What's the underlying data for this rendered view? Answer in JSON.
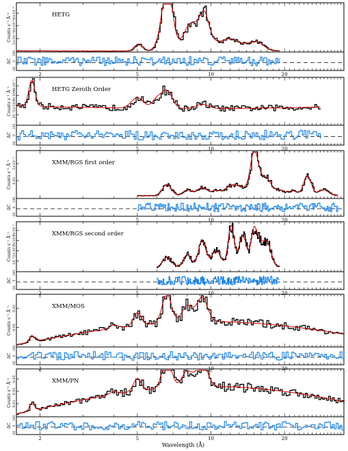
{
  "figure": {
    "xlabel": "Wavelength (Å)"
  },
  "chart_data": [
    {
      "type": "line",
      "title": "HETG",
      "ylabel": "Counts s⁻¹ Å⁻¹",
      "ytick_labels": [
        "2×10⁻⁴",
        "4×10⁻⁴",
        "6×10⁻⁴"
      ],
      "resid_label": "ΔC",
      "resid_ticks": [
        "-20",
        "0",
        "100"
      ],
      "xticks": [
        2,
        5,
        10,
        20
      ],
      "x_range": [
        1.6,
        35
      ],
      "x_scale": "log",
      "data_x_range": [
        1.6,
        19
      ],
      "ylim": [
        0,
        0.0007
      ],
      "series": [
        {
          "name": "data",
          "color": "#000000"
        },
        {
          "name": "model",
          "color": "#d40000"
        },
        {
          "name": "residual",
          "color": "#1f87e8"
        }
      ],
      "features": [
        [
          5.05,
          0.00011,
          0.05
        ],
        [
          6.6,
          0.00067,
          0.08
        ],
        [
          6.65,
          0.00045,
          0.05
        ],
        [
          8.0,
          0.0002,
          0.08
        ],
        [
          8.4,
          0.00022,
          0.08
        ],
        [
          9.2,
          0.0003,
          0.08
        ],
        [
          9.4,
          0.00026,
          0.05
        ],
        [
          10.0,
          0.00012,
          0.06
        ],
        [
          11.0,
          0.0001,
          0.08
        ],
        [
          12.1,
          0.00015,
          0.08
        ],
        [
          13.5,
          8e-05,
          0.08
        ],
        [
          15.0,
          0.0001,
          0.08
        ],
        [
          16.0,
          6e-05,
          0.08
        ]
      ],
      "continuum": [
        6e-06,
        4e-06
      ]
    },
    {
      "type": "line",
      "title": "HETG Zeroth Order",
      "ylabel": "Counts s⁻¹ Å⁻¹",
      "ytick_labels": [
        "10⁻³",
        "2×10⁻³",
        "3×10⁻³",
        "4×10⁻³"
      ],
      "resid_label": "ΔC",
      "resid_ticks": [
        "-20",
        "0",
        "100"
      ],
      "xticks": [
        2,
        5,
        10,
        20
      ],
      "x_range": [
        1.6,
        35
      ],
      "x_scale": "log",
      "data_x_range": [
        1.6,
        28
      ],
      "ylim": [
        0,
        0.005
      ],
      "series": [
        {
          "name": "data",
          "color": "#000000"
        },
        {
          "name": "model",
          "color": "#d40000"
        },
        {
          "name": "residual",
          "color": "#1f87e8"
        }
      ],
      "features": [
        [
          1.85,
          0.003,
          0.04
        ],
        [
          5.0,
          0.0012,
          0.08
        ],
        [
          6.6,
          0.002,
          0.07
        ],
        [
          6.0,
          0.001,
          0.06
        ],
        [
          9.2,
          0.0005,
          0.08
        ]
      ],
      "continuum": [
        0.0021,
        0.0018
      ]
    },
    {
      "type": "line",
      "title": "XMM/RGS first order",
      "ylabel": "Counts s⁻¹ Å⁻¹",
      "ytick_labels": [
        "0.01",
        "5×10⁻³"
      ],
      "resid_label": "ΔC",
      "resid_ticks": [
        "-20",
        "0",
        "100"
      ],
      "xticks": [
        2,
        5,
        10,
        20
      ],
      "x_range": [
        1.6,
        35
      ],
      "x_scale": "log",
      "data_x_range": [
        5,
        33
      ],
      "ylim": [
        0,
        0.011
      ],
      "series": [
        {
          "name": "data",
          "color": "#000000"
        },
        {
          "name": "model",
          "color": "#d40000"
        },
        {
          "name": "residual",
          "color": "#1f87e8"
        }
      ],
      "features": [
        [
          6.6,
          0.0028,
          0.06
        ],
        [
          8.0,
          0.0014,
          0.06
        ],
        [
          9.2,
          0.002,
          0.07
        ],
        [
          10.5,
          0.0012,
          0.06
        ],
        [
          12.1,
          0.0025,
          0.08
        ],
        [
          13.5,
          0.0018,
          0.07
        ],
        [
          15.0,
          0.01,
          0.05
        ],
        [
          16.0,
          0.0035,
          0.06
        ],
        [
          17.1,
          0.003,
          0.05
        ],
        [
          18.9,
          0.0015,
          0.07
        ],
        [
          24.8,
          0.005,
          0.05
        ],
        [
          21.6,
          0.0012,
          0.06
        ],
        [
          28.8,
          0.0015,
          0.07
        ]
      ],
      "continuum": [
        0.0005,
        0.0005
      ]
    },
    {
      "type": "line",
      "title": "XMM/RGS second order",
      "ylabel": "Counts s⁻¹ Å⁻¹",
      "ytick_labels": [
        "10⁻³",
        "2×10⁻³",
        "3×10⁻³",
        "4×10⁻³"
      ],
      "resid_label": "ΔC",
      "resid_ticks": [
        "-20",
        "0",
        "100"
      ],
      "xticks": [
        2,
        5,
        10,
        20
      ],
      "x_range": [
        1.6,
        35
      ],
      "x_scale": "log",
      "data_x_range": [
        6,
        19
      ],
      "ylim": [
        0,
        0.0046
      ],
      "series": [
        {
          "name": "data",
          "color": "#000000"
        },
        {
          "name": "model",
          "color": "#d40000"
        },
        {
          "name": "residual",
          "color": "#1f87e8"
        }
      ],
      "features": [
        [
          6.6,
          0.001,
          0.06
        ],
        [
          8.0,
          0.0012,
          0.05
        ],
        [
          9.2,
          0.0025,
          0.05
        ],
        [
          10.5,
          0.0015,
          0.06
        ],
        [
          12.1,
          0.004,
          0.04
        ],
        [
          13.5,
          0.003,
          0.05
        ],
        [
          15.0,
          0.0035,
          0.04
        ],
        [
          16.0,
          0.002,
          0.05
        ],
        [
          17.1,
          0.002,
          0.05
        ]
      ],
      "continuum": [
        0.0003,
        0.0005
      ]
    },
    {
      "type": "line",
      "title": "XMM/MOS",
      "ylabel": "Counts s⁻¹ Å⁻¹",
      "ytick_labels": [
        "0.01",
        "0.02"
      ],
      "resid_label": "ΔC",
      "resid_ticks": [
        "-20",
        "0",
        "100"
      ],
      "xticks": [
        2,
        5,
        10,
        20
      ],
      "x_range": [
        1.6,
        35
      ],
      "x_scale": "log",
      "data_x_range": [
        1.6,
        35
      ],
      "ylim": [
        0,
        0.03
      ],
      "series": [
        {
          "name": "data",
          "color": "#000000"
        },
        {
          "name": "model",
          "color": "#d40000"
        },
        {
          "name": "residual",
          "color": "#1f87e8"
        }
      ],
      "features": [
        [
          1.85,
          0.004,
          0.03
        ],
        [
          4.0,
          0.002,
          0.05
        ],
        [
          5.0,
          0.008,
          0.05
        ],
        [
          6.6,
          0.018,
          0.06
        ],
        [
          8.0,
          0.01,
          0.07
        ],
        [
          9.2,
          0.015,
          0.07
        ]
      ],
      "continuum": [
        0.001,
        0.015
      ]
    },
    {
      "type": "line",
      "title": "XMM/PN",
      "ylabel": "Counts s⁻¹ Å⁻¹",
      "ytick_labels": [
        "0.01",
        "0.02",
        "0.03"
      ],
      "resid_label": "ΔC",
      "resid_ticks": [
        "-20",
        "0",
        "100"
      ],
      "xticks": [
        2,
        5,
        10,
        20
      ],
      "x_range": [
        1.6,
        35
      ],
      "x_scale": "log",
      "data_x_range": [
        1.6,
        35
      ],
      "ylim": [
        0,
        0.045
      ],
      "series": [
        {
          "name": "data",
          "color": "#000000"
        },
        {
          "name": "model",
          "color": "#d40000"
        },
        {
          "name": "residual",
          "color": "#1f87e8"
        }
      ],
      "features": [
        [
          1.85,
          0.008,
          0.03
        ],
        [
          4.0,
          0.003,
          0.05
        ],
        [
          5.0,
          0.013,
          0.05
        ],
        [
          6.6,
          0.032,
          0.06
        ],
        [
          8.0,
          0.016,
          0.07
        ],
        [
          9.2,
          0.025,
          0.07
        ]
      ],
      "continuum": [
        0.002,
        0.03
      ]
    }
  ]
}
